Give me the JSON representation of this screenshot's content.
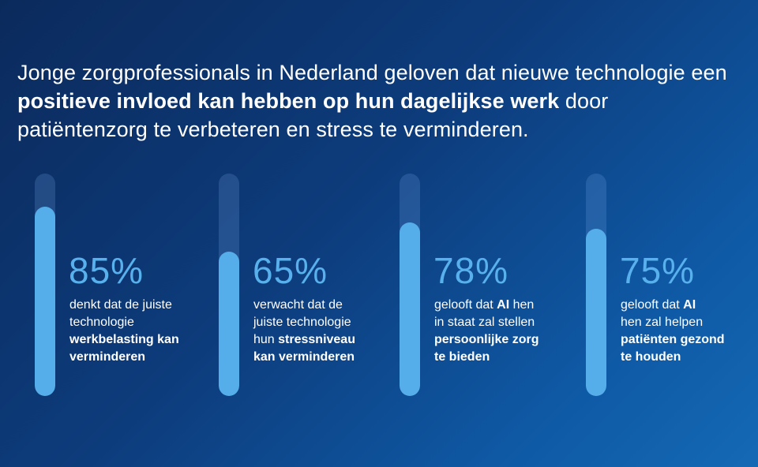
{
  "headline": {
    "part1": "Jonge zorgprofessionals in Nederland geloven dat nieuwe technologie een ",
    "bold": "positieve invloed kan hebben op hun dagelijkse werk",
    "part2": " door patiëntenzorg te verbeteren en stress te verminderen."
  },
  "chart_data": {
    "type": "bar",
    "orientation": "vertical",
    "unit": "%",
    "ylim": [
      0,
      100
    ],
    "categories": [
      "denkt dat de juiste technologie werkbelasting kan verminderen",
      "verwacht dat de juiste technologie hun stressniveau kan verminderen",
      "gelooft dat AI hen in staat zal stellen persoonlijke zorg te bieden",
      "gelooft dat AI hen zal helpen patiënten gezond te houden"
    ],
    "values": [
      85,
      65,
      78,
      75
    ],
    "labels": [
      "85%",
      "65%",
      "78%",
      "75%"
    ]
  },
  "stats": [
    {
      "pct": "85%",
      "value": 85,
      "line1": "denkt dat de juiste",
      "line2": "technologie",
      "bold1": "werkbelasting kan",
      "bold2": "verminderen",
      "bold_inline": "",
      "tail": ""
    },
    {
      "pct": "65%",
      "value": 65,
      "line1": "verwacht dat de",
      "line2": "juiste technologie",
      "line3": "hun ",
      "bold_inline": "stressniveau",
      "bold1": "kan verminderen",
      "tail": ""
    },
    {
      "pct": "78%",
      "value": 78,
      "line1": "gelooft dat ",
      "bold_inline": "AI",
      "tail": " hen",
      "line2": "in staat zal stellen",
      "bold1": "persoonlijke zorg",
      "bold2": "te bieden"
    },
    {
      "pct": "75%",
      "value": 75,
      "line1": "gelooft dat ",
      "bold_inline": "AI",
      "tail": "",
      "line2": "hen zal helpen",
      "bold1": "patiënten gezond",
      "bold2": "te houden"
    }
  ],
  "colors": {
    "fill": "#55aeea",
    "track": "rgba(120,170,230,0.22)",
    "percent_text": "#58b0ec",
    "background_start": "#0b2a5c",
    "background_end": "#1469b5"
  }
}
